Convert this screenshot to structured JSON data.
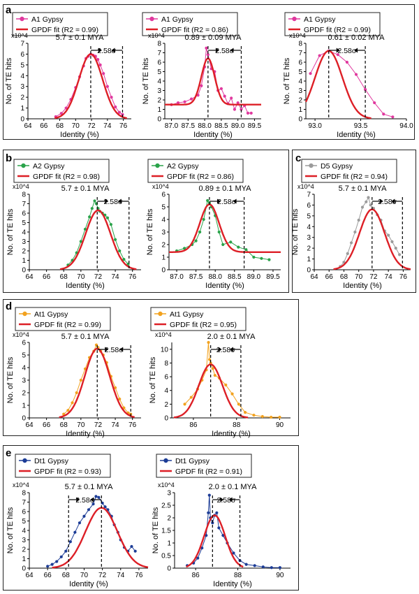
{
  "panels": [
    {
      "letter": "a"
    },
    {
      "letter": "b"
    },
    {
      "letter": "c"
    },
    {
      "letter": "d"
    },
    {
      "letter": "e"
    }
  ],
  "colors": {
    "fit": "#dd1f26",
    "A1": "#e0389e",
    "A2": "#2aa34a",
    "D5": "#9b9b9b",
    "At1": "#f2a21f",
    "Dt1": "#1c3c96"
  },
  "chart_data": [
    {
      "id": "a1",
      "panel": "a",
      "type": "line",
      "title": "5.7 ± 0.1 MYA",
      "xlabel": "Identity (%)",
      "ylabel": "No. of TE hits",
      "y_multiplier": "x10^4",
      "xlim": [
        64,
        77
      ],
      "ylim": [
        0,
        7
      ],
      "xticks": [
        64,
        66,
        68,
        70,
        72,
        74,
        76
      ],
      "yticks": [
        0,
        1,
        2,
        3,
        4,
        5,
        6,
        7
      ],
      "xtick_labels": [
        "64",
        "66",
        "68",
        "70",
        "72",
        "74",
        "76"
      ],
      "series": [
        {
          "name": "A1 Gypsy",
          "color": "#e0389e",
          "x": [
            67.5,
            68.2,
            68.8,
            69.4,
            70,
            70.5,
            71,
            71.3,
            71.6,
            71.9,
            72.2,
            72.5,
            72.8,
            73.1,
            73.5,
            74,
            74.5,
            75,
            75.5,
            75.9
          ],
          "y": [
            0.2,
            0.5,
            1.0,
            1.8,
            2.9,
            3.9,
            4.9,
            5.6,
            5.8,
            6.0,
            5.9,
            5.8,
            5.5,
            5.0,
            4.2,
            3.0,
            2.0,
            1.1,
            0.6,
            0.4
          ]
        }
      ],
      "fit": {
        "name": "GPDF fit (R2 = 0.99)",
        "r2": 0.99,
        "mu": 71.9,
        "sigma": 1.5,
        "amp": 6.0,
        "base": 0
      },
      "vlines": [
        71.9,
        75.9
      ],
      "annotation": "2.58σ"
    },
    {
      "id": "a2",
      "panel": "a",
      "type": "line",
      "title": "0.89 ± 0.09 MYA",
      "xlabel": "Identity (%)",
      "ylabel": "No. of TE hits",
      "y_multiplier": "x10^4",
      "xlim": [
        86.8,
        89.7
      ],
      "ylim": [
        0,
        8
      ],
      "xticks": [
        87,
        87.5,
        88,
        88.5,
        89,
        89.5
      ],
      "yticks": [
        0,
        1,
        2,
        3,
        4,
        5,
        6,
        7,
        8
      ],
      "xtick_labels": [
        "87.0",
        "87.5",
        "88.0",
        "88.5",
        "89.0",
        "89.5"
      ],
      "series": [
        {
          "name": "A1 Gypsy",
          "color": "#e0389e",
          "x": [
            87,
            87.2,
            87.4,
            87.6,
            87.8,
            87.9,
            88,
            88.05,
            88.1,
            88.2,
            88.3,
            88.4,
            88.5,
            88.6,
            88.7,
            88.8,
            88.9,
            89,
            89.1,
            89.2,
            89.3,
            89.4
          ],
          "y": [
            1.5,
            1.7,
            1.8,
            2.1,
            2.5,
            3.5,
            5.5,
            7.5,
            6.8,
            5.3,
            5.0,
            3.0,
            3.2,
            2.4,
            1.6,
            2.2,
            1.0,
            1.7,
            1.0,
            1.4,
            0.6,
            0.6
          ]
        }
      ],
      "fit": {
        "name": "GPDF fit (R2 = 0.86)",
        "r2": 0.86,
        "mu": 88.1,
        "sigma": 0.2,
        "amp": 4.9,
        "base": 1.5
      },
      "vlines": [
        88.1,
        89.1
      ],
      "annotation": "2.58σ"
    },
    {
      "id": "a3",
      "panel": "a",
      "type": "line",
      "title": "0.61 ± 0.02 MYA",
      "xlabel": "Identity (%)",
      "ylabel": "No. of TE hits",
      "y_multiplier": "x10^4",
      "xlim": [
        92.9,
        94
      ],
      "ylim": [
        0,
        8
      ],
      "xticks": [
        93,
        93.5,
        94
      ],
      "yticks": [
        0,
        1,
        2,
        3,
        4,
        5,
        6,
        7,
        8
      ],
      "xtick_labels": [
        "93.0",
        "93.5",
        "94.0"
      ],
      "series": [
        {
          "name": "A1 Gypsy",
          "color": "#e0389e",
          "x": [
            92.95,
            93.05,
            93.15,
            93.25,
            93.35,
            93.45,
            93.55,
            93.65,
            93.75,
            93.85
          ],
          "y": [
            4.8,
            6.7,
            7.2,
            6.8,
            6.0,
            4.7,
            3.1,
            1.7,
            0.5,
            0.2
          ]
        }
      ],
      "fit": {
        "name": "GPDF fit (R2 = 0.99)",
        "r2": 0.99,
        "mu": 93.15,
        "sigma": 0.15,
        "amp": 7.2,
        "base": 0
      },
      "vlines": [
        93.15,
        93.55
      ],
      "annotation": "2.58σ"
    },
    {
      "id": "b1",
      "panel": "b",
      "type": "line",
      "title": "5.7 ± 0.1 MYA",
      "xlabel": "Identity (%)",
      "ylabel": "No. of TE hits",
      "y_multiplier": "x10^4",
      "xlim": [
        64,
        77
      ],
      "ylim": [
        0,
        8
      ],
      "xticks": [
        64,
        66,
        68,
        70,
        72,
        74,
        76
      ],
      "yticks": [
        0,
        1,
        2,
        3,
        4,
        5,
        6,
        7,
        8
      ],
      "xtick_labels": [
        "64",
        "66",
        "68",
        "70",
        "72",
        "74",
        "76"
      ],
      "series": [
        {
          "name": "A2 Gypsy",
          "color": "#2aa34a",
          "x": [
            68.5,
            69,
            69.5,
            70,
            70.5,
            71,
            71.3,
            71.6,
            71.8,
            72,
            72.2,
            72.5,
            72.8,
            73.1,
            73.5,
            74,
            74.5,
            75,
            75.5
          ],
          "y": [
            0.5,
            1.0,
            1.8,
            3.0,
            4.3,
            5.6,
            6.5,
            7.3,
            7.0,
            6.5,
            6.2,
            6.0,
            5.8,
            5.5,
            4.8,
            3.2,
            2.0,
            1.1,
            0.6
          ]
        }
      ],
      "fit": {
        "name": "GPDF fit (R2 = 0.98)",
        "r2": 0.98,
        "mu": 72,
        "sigma": 1.45,
        "amp": 6.3,
        "base": 0
      },
      "vlines": [
        71.9,
        75.6
      ],
      "annotation": "2.58σ"
    },
    {
      "id": "b2",
      "panel": "b",
      "type": "line",
      "title": "0.89 ± 0.1 MYA",
      "xlabel": "Identity (%)",
      "ylabel": "No. of TE hits",
      "y_multiplier": "x10^4",
      "xlim": [
        86.8,
        89.7
      ],
      "ylim": [
        0,
        6
      ],
      "xticks": [
        87,
        87.5,
        88,
        88.5,
        89,
        89.5
      ],
      "yticks": [
        0,
        1,
        2,
        3,
        4,
        5,
        6
      ],
      "xtick_labels": [
        "87.0",
        "87.5",
        "88.0",
        "88.5",
        "89.0",
        "89.5"
      ],
      "series": [
        {
          "name": "A2 Gypsy",
          "color": "#2aa34a",
          "x": [
            87,
            87.2,
            87.4,
            87.5,
            87.6,
            87.7,
            87.8,
            87.85,
            87.9,
            88,
            88.1,
            88.2,
            88.4,
            88.6,
            88.8,
            89,
            89.2,
            89.4
          ],
          "y": [
            1.5,
            1.7,
            2.0,
            2.3,
            3.0,
            4.0,
            5.5,
            5.3,
            5.0,
            4.3,
            3.0,
            2.0,
            2.2,
            1.8,
            1.6,
            1.0,
            0.9,
            0.8
          ]
        }
      ],
      "fit": {
        "name": "GPDF fit (R2 = 0.86)",
        "r2": 0.86,
        "mu": 87.85,
        "sigma": 0.25,
        "amp": 3.8,
        "base": 1.4
      },
      "vlines": [
        87.85,
        88.75
      ],
      "annotation": "2.58σ"
    },
    {
      "id": "c1",
      "panel": "c",
      "type": "line",
      "title": "5.7 ± 0.1 MYA",
      "xlabel": "Identity (%)",
      "ylabel": "No. of TE hits",
      "y_multiplier": "x10^4",
      "xlim": [
        64,
        77
      ],
      "ylim": [
        0,
        7
      ],
      "xticks": [
        64,
        66,
        68,
        70,
        72,
        74,
        76
      ],
      "yticks": [
        0,
        1,
        2,
        3,
        4,
        5,
        6,
        7
      ],
      "xtick_labels": [
        "64",
        "66",
        "68",
        "70",
        "72",
        "74",
        "76"
      ],
      "series": [
        {
          "name": "D5 Gypsy",
          "color": "#9b9b9b",
          "x": [
            67.5,
            68,
            68.5,
            69,
            69.5,
            70,
            70.5,
            71,
            71.3,
            71.6,
            72,
            72.5,
            73,
            73.5,
            74,
            74.5,
            75,
            75.5
          ],
          "y": [
            0.3,
            0.7,
            1.5,
            2.5,
            3.5,
            4.6,
            5.8,
            6.3,
            6.7,
            6.0,
            5.7,
            5.1,
            4.6,
            3.6,
            3.2,
            2.6,
            2.0,
            1.4
          ]
        }
      ],
      "fit": {
        "name": "GPDF fit (R2 = 0.94)",
        "r2": 0.94,
        "mu": 71.8,
        "sigma": 1.7,
        "amp": 5.6,
        "base": 0
      },
      "vlines": [
        71.8,
        75.9
      ],
      "annotation": "2.58σ"
    },
    {
      "id": "d1",
      "panel": "d",
      "type": "line",
      "title": "5.7 ± 0.1 MYA",
      "xlabel": "Identity (%)",
      "ylabel": "No. of TE hits",
      "y_multiplier": "x10^4",
      "xlim": [
        64,
        77
      ],
      "ylim": [
        0,
        6
      ],
      "xticks": [
        64,
        66,
        68,
        70,
        72,
        74,
        76
      ],
      "yticks": [
        0,
        1,
        2,
        3,
        4,
        5,
        6
      ],
      "xtick_labels": [
        "64",
        "66",
        "68",
        "70",
        "72",
        "74",
        "76"
      ],
      "series": [
        {
          "name": "At1 Gypsy",
          "color": "#f2a21f",
          "x": [
            68,
            68.5,
            69,
            69.5,
            70,
            70.5,
            71,
            71.5,
            71.8,
            72,
            72.3,
            72.6,
            73,
            73.5,
            74,
            74.5,
            75,
            75.5,
            75.8
          ],
          "y": [
            0.3,
            0.6,
            1.2,
            2.0,
            3.0,
            3.9,
            4.8,
            5.3,
            5.8,
            5.6,
            5.3,
            5.0,
            4.4,
            3.3,
            2.4,
            1.5,
            0.8,
            0.4,
            0.3
          ]
        }
      ],
      "fit": {
        "name": "GPDF fit (R2 = 0.99)",
        "r2": 0.99,
        "mu": 71.9,
        "sigma": 1.45,
        "amp": 5.5,
        "base": 0
      },
      "vlines": [
        71.9,
        75.8
      ],
      "annotation": "2.58σ"
    },
    {
      "id": "d2",
      "panel": "d",
      "type": "line",
      "title": "2.0 ± 0.1 MYA",
      "xlabel": "Identity (%)",
      "ylabel": "No. of TE hits",
      "y_multiplier": "x10^4",
      "xlim": [
        85,
        90.5
      ],
      "ylim": [
        0,
        11
      ],
      "xticks": [
        86,
        88,
        90
      ],
      "yticks": [
        0,
        2,
        4,
        6,
        8,
        10
      ],
      "xtick_labels": [
        "86",
        "88",
        "90"
      ],
      "series": [
        {
          "name": "At1 Gypsy",
          "color": "#f2a21f",
          "x": [
            85.6,
            85.9,
            86.2,
            86.4,
            86.6,
            86.7,
            86.75,
            86.8,
            86.9,
            87,
            87.2,
            87.5,
            87.8,
            88.1,
            88.4,
            88.8,
            89.2,
            89.6,
            90
          ],
          "y": [
            2.0,
            3.0,
            4.2,
            5.5,
            7.0,
            11.0,
            8.5,
            8.0,
            7.2,
            6.2,
            5.8,
            4.8,
            3.5,
            2.0,
            0.8,
            0.4,
            0.2,
            0.1,
            0.1
          ]
        }
      ],
      "fit": {
        "name": "GPDF fit (R2 = 0.95)",
        "r2": 0.95,
        "mu": 86.8,
        "sigma": 0.55,
        "amp": 7.8,
        "base": 0
      },
      "vlines": [
        86.8,
        88.2
      ],
      "annotation": "2.58σ"
    },
    {
      "id": "e1",
      "panel": "e",
      "type": "line",
      "title": "5.7 ± 0.1 MYA",
      "xlabel": "Identity (%)",
      "ylabel": "No. of TE hits",
      "y_multiplier": "x10^4",
      "xlim": [
        64,
        77
      ],
      "ylim": [
        0,
        8
      ],
      "xticks": [
        64,
        66,
        68,
        70,
        72,
        74,
        76
      ],
      "yticks": [
        0,
        1,
        2,
        3,
        4,
        5,
        6,
        7,
        8
      ],
      "xtick_labels": [
        "64",
        "66",
        "68",
        "70",
        "72",
        "74",
        "76"
      ],
      "series": [
        {
          "name": "Dt1 Gypsy",
          "color": "#1c3c96",
          "x": [
            66,
            66.5,
            67,
            67.5,
            68,
            68.5,
            69,
            69.5,
            70,
            70.5,
            71,
            71.3,
            71.6,
            72,
            72.3,
            72.6,
            73,
            73.3,
            73.7,
            74,
            74.4,
            74.8,
            75.2,
            75.6
          ],
          "y": [
            0.2,
            0.4,
            0.7,
            1.2,
            1.8,
            2.8,
            3.8,
            4.8,
            5.5,
            6.2,
            6.8,
            7.6,
            7.5,
            6.9,
            6.5,
            6.2,
            5.5,
            4.6,
            3.8,
            3.0,
            2.2,
            1.8,
            2.3,
            1.8
          ]
        }
      ],
      "fit": {
        "name": "GPDF fit (R2 = 0.93)",
        "r2": 0.93,
        "mu": 71.9,
        "sigma": 1.75,
        "amp": 6.4,
        "base": 0
      },
      "vlines": [
        68.3,
        71.9
      ],
      "annotation": "2.58σ"
    },
    {
      "id": "e2",
      "panel": "e",
      "type": "line",
      "title": "2.0 ± 0.1 MYA",
      "xlabel": "Identity (%)",
      "ylabel": "No. of TE hits",
      "y_multiplier": "x10^4",
      "xlim": [
        85,
        90.5
      ],
      "ylim": [
        0,
        3
      ],
      "xticks": [
        86,
        88,
        90
      ],
      "yticks": [
        0,
        0.5,
        1,
        1.5,
        2,
        2.5,
        3
      ],
      "xtick_labels": [
        "86",
        "88",
        "90"
      ],
      "series": [
        {
          "name": "Dt1 Gypsy",
          "color": "#1c3c96",
          "x": [
            85.6,
            85.9,
            86.1,
            86.3,
            86.5,
            86.6,
            86.65,
            86.7,
            86.8,
            86.9,
            87,
            87.1,
            87.3,
            87.5,
            87.8,
            88.1,
            88.4,
            88.8,
            89.2,
            89.6,
            90
          ],
          "y": [
            0.1,
            0.2,
            0.4,
            0.8,
            1.3,
            2.2,
            2.9,
            2.0,
            1.8,
            2.1,
            2.2,
            1.6,
            1.3,
            1.0,
            0.6,
            0.3,
            0.15,
            0.1,
            0.05,
            0.02,
            0.02
          ]
        }
      ],
      "fit": {
        "name": "GPDF fit (R2 = 0.91)",
        "r2": 0.91,
        "mu": 86.9,
        "sigma": 0.5,
        "amp": 2.1,
        "base": 0
      },
      "vlines": [
        86.8,
        88.1
      ],
      "annotation": "2.58σ"
    }
  ]
}
